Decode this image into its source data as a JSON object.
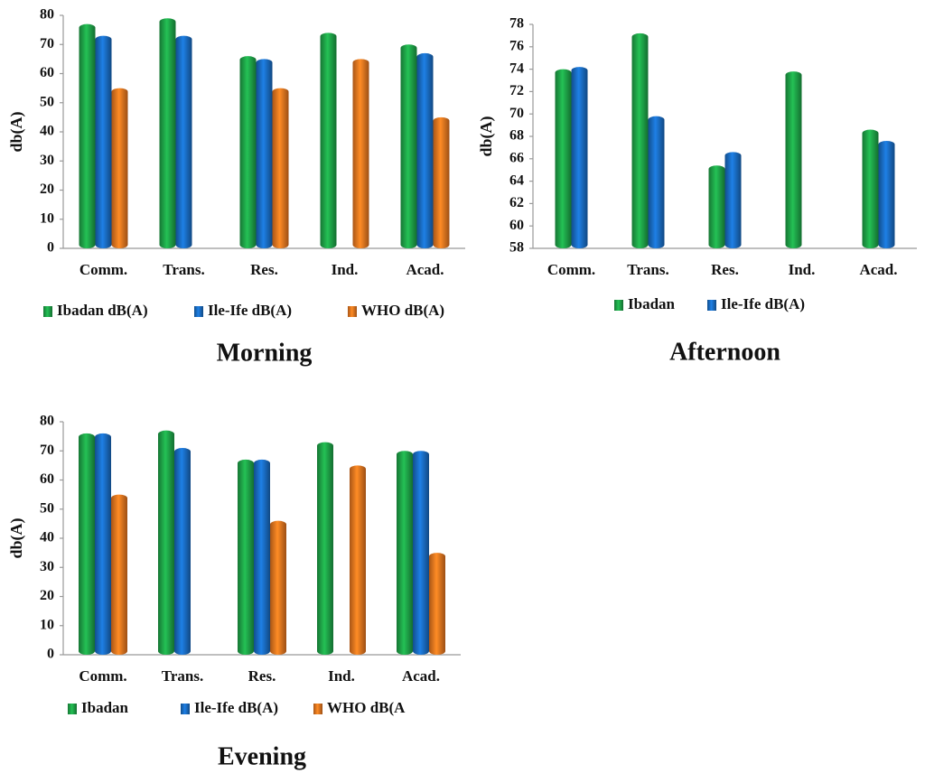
{
  "chart_data": [
    {
      "type": "bar",
      "title": "Morning",
      "y_label": "db(A)",
      "categories": [
        "Comm.",
        "Trans.",
        "Res.",
        "Ind.",
        "Acad."
      ],
      "series": [
        {
          "name": "Ibadan dB(A)",
          "color": "#1fa84a",
          "values": [
            77,
            79,
            66,
            74,
            70
          ]
        },
        {
          "name": "Ile-Ife dB(A)",
          "color": "#1a6fc8",
          "values": [
            73,
            73,
            65,
            null,
            67
          ]
        },
        {
          "name": "WHO dB(A)",
          "color": "#f07a20",
          "values": [
            55,
            null,
            55,
            65,
            45
          ]
        }
      ],
      "ylim": [
        0,
        80
      ],
      "yticks": [
        0,
        10,
        20,
        30,
        40,
        50,
        60,
        70,
        80
      ]
    },
    {
      "type": "bar",
      "title": "Afternoon",
      "y_label": "db(A)",
      "categories": [
        "Comm.",
        "Trans.",
        "Res.",
        "Ind.",
        "Acad."
      ],
      "series": [
        {
          "name": "Ibadan",
          "color": "#1fa84a",
          "values": [
            74,
            77.2,
            65.4,
            73.8,
            68.6
          ]
        },
        {
          "name": "Ile-Ife dB(A)",
          "color": "#1a6fc8",
          "values": [
            74.2,
            69.8,
            66.6,
            null,
            67.6
          ]
        }
      ],
      "ylim": [
        58,
        78
      ],
      "yticks": [
        58,
        60,
        62,
        64,
        66,
        68,
        70,
        72,
        74,
        76,
        78
      ]
    },
    {
      "type": "bar",
      "title": "Evening",
      "y_label": "db(A)",
      "categories": [
        "Comm.",
        "Trans.",
        "Res.",
        "Ind.",
        "Acad."
      ],
      "series": [
        {
          "name": "Ibadan",
          "color": "#1fa84a",
          "values": [
            76,
            77,
            67,
            73,
            70
          ]
        },
        {
          "name": "Ile-Ife dB(A)",
          "color": "#1a6fc8",
          "values": [
            76,
            71,
            67,
            null,
            70
          ]
        },
        {
          "name": "WHO dB(A",
          "color": "#f07a20",
          "values": [
            55,
            null,
            46,
            65,
            35
          ]
        }
      ],
      "ylim": [
        0,
        80
      ],
      "yticks": [
        0,
        10,
        20,
        30,
        40,
        50,
        60,
        70,
        80
      ]
    }
  ]
}
